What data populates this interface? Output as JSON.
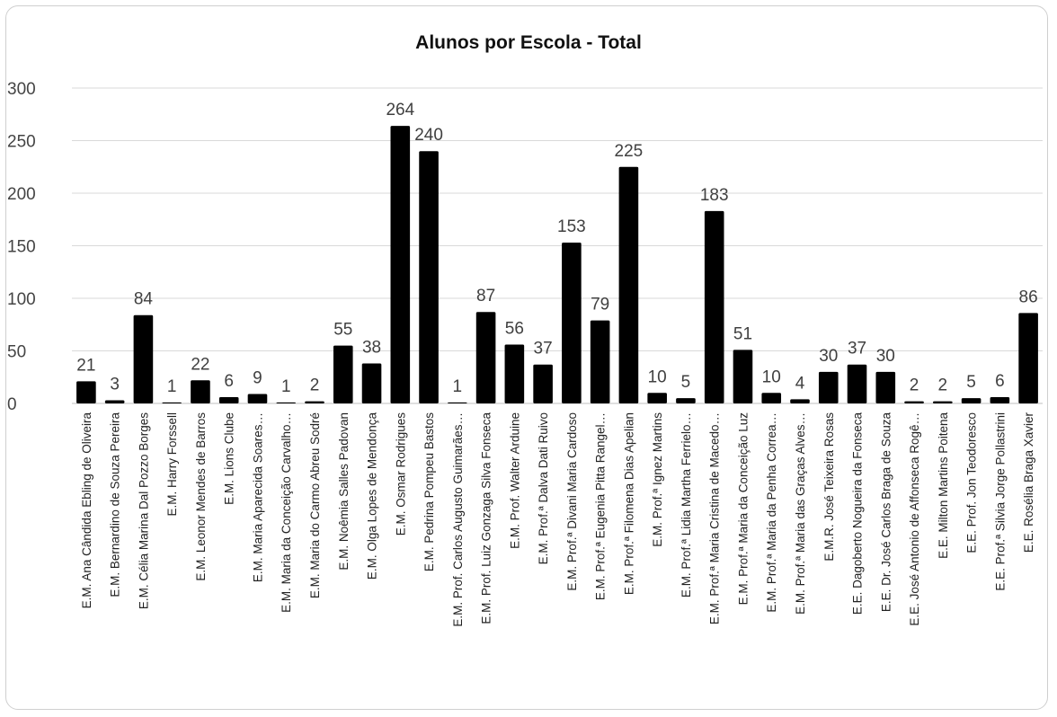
{
  "chart_data": {
    "type": "bar",
    "title": "Alunos por Escola - Total",
    "xlabel": "",
    "ylabel": "",
    "ylim": [
      0,
      300
    ],
    "yticks": [
      0,
      50,
      100,
      150,
      200,
      250,
      300
    ],
    "grid": true,
    "legend": "none",
    "bar_color": "#000000",
    "categories": [
      "E.M. Ana Cândida Ebling de Oliveira",
      "E.M. Bernardino de Souza Pereira",
      "E.M. Célia Marina Dal Pozzo Borges",
      "E.M. Harry Forssell",
      "E.M. Leonor Mendes de Barros",
      "E.M. Lions Clube",
      "E.M. Maria Aparecida Soares…",
      "E.M. Maria da Conceição Carvalho…",
      "E.M. Maria do Carmo Abreu Sodré",
      "E.M. Noêmia Salles Padovan",
      "E.M. Olga Lopes de Mendonça",
      "E.M. Osmar Rodrigues",
      "E.M. Pedrina Pompeu Bastos",
      "E.M. Prof. Carlos Augusto Guimarães…",
      "E.M. Prof. Luiz Gonzaga Silva Fonseca",
      "E.M. Prof. Walter Arduine",
      "E.M. Prof.ª Dalva Dati Ruivo",
      "E.M. Prof.ª Divani Maria Cardoso",
      "E.M. Prof.ª Eugenia Pitta Rangel…",
      "E.M. Prof.ª Filomena Dias Apelian",
      "E.M. Prof.ª Ignez Martins",
      "E.M. Prof.ª Lidia Martha Ferrielo…",
      "E.M. Prof.ª Maria Cristina de Macedo…",
      "E.M. Prof.ª Maria da Conceição Luz",
      "E.M. Prof.ª Maria da Penha Correa…",
      "E.M. Prof.ª Maria das Graças Alves…",
      "E.M.R. José Teixeira Rosas",
      "E.E. Dagoberto Nogueira da Fonseca",
      "E.E. Dr. José Carlos Braga de Souza",
      "E.E. José Antonio de Affonseca Rogê…",
      "E.E. Milton Martins Poitena",
      "E.E. Prof. Jon Teodoresco",
      "E.E. Prof.ª Silvia Jorge Pollastrini",
      "E.E. Rosélia Braga Xavier"
    ],
    "values": [
      21,
      3,
      84,
      1,
      22,
      6,
      9,
      1,
      2,
      55,
      38,
      264,
      240,
      1,
      87,
      56,
      37,
      153,
      79,
      225,
      10,
      5,
      183,
      51,
      10,
      4,
      30,
      37,
      30,
      2,
      2,
      5,
      6,
      86
    ]
  }
}
